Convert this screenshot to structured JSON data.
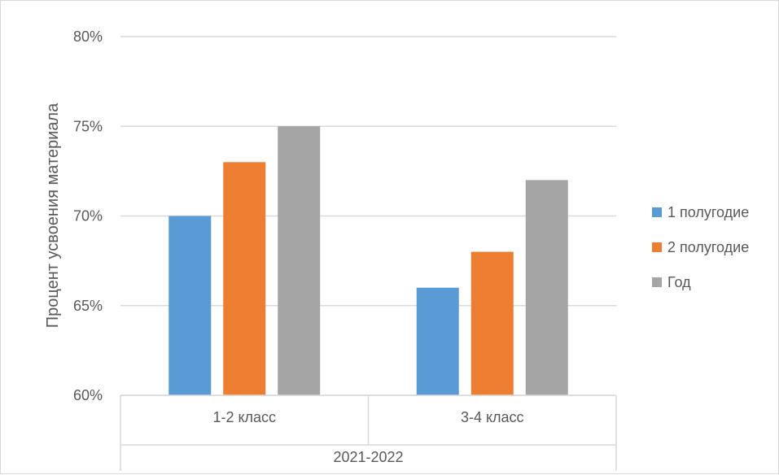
{
  "chart_data": {
    "type": "bar",
    "title": "",
    "xlabel": "",
    "ylabel": "Процент усвоения материала",
    "ylim": [
      0.6,
      0.8
    ],
    "yticks": [
      0.6,
      0.65,
      0.7,
      0.75,
      0.8
    ],
    "ytick_labels": [
      "60%",
      "65%",
      "70%",
      "75%",
      "80%"
    ],
    "grid": true,
    "legend_position": "right",
    "categories": [
      "1-2 класс",
      "3-4 класс"
    ],
    "group_label": "2021-2022",
    "series": [
      {
        "name": "1 полугодие",
        "color": "#5b9bd5",
        "values": [
          0.7,
          0.66
        ]
      },
      {
        "name": "2 полугодие",
        "color": "#ed7d31",
        "values": [
          0.73,
          0.68
        ]
      },
      {
        "name": "Год",
        "color": "#a5a5a5",
        "values": [
          0.75,
          0.72
        ]
      }
    ]
  }
}
